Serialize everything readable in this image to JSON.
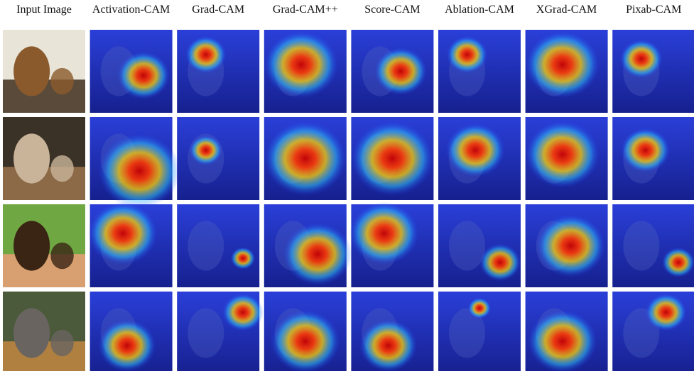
{
  "header": {
    "columns": [
      "Input Image",
      "Activation-CAM",
      "Grad-CAM",
      "Grad-CAM++",
      "Score-CAM",
      "Ablation-CAM",
      "XGrad-CAM",
      "Pixab-CAM"
    ]
  }
}
